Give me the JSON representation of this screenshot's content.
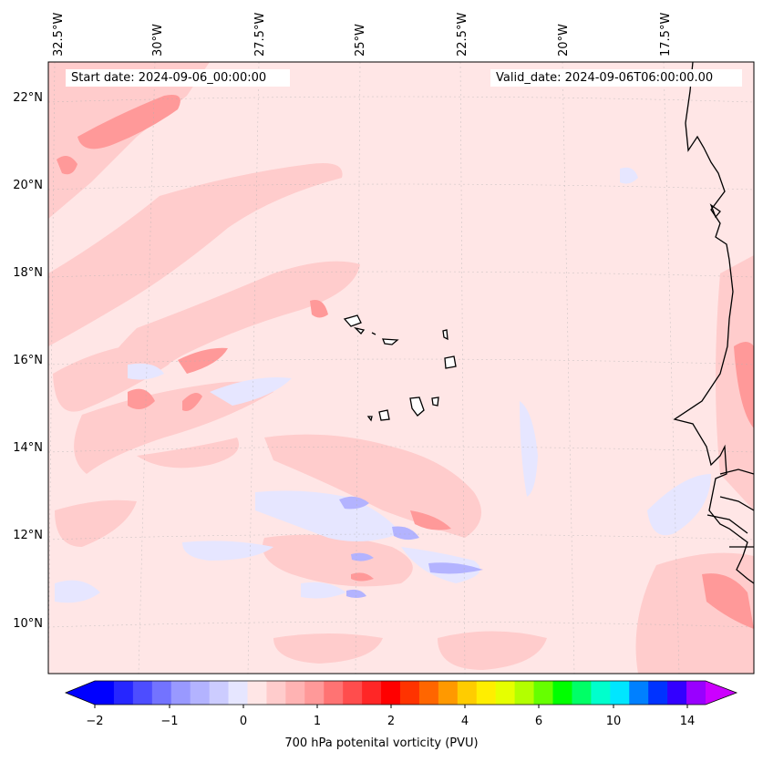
{
  "map": {
    "start_label": "Start date: 2024-09-06_00:00:00",
    "valid_label": "Valid_date: 2024-09-06T06:00:00.00",
    "lon_labels": [
      "32.5°W",
      "30°W",
      "27.5°W",
      "25°W",
      "22.5°W",
      "20°W",
      "17.5°W"
    ],
    "lat_labels": [
      "22°N",
      "20°N",
      "18°N",
      "16°N",
      "14°N",
      "12°N",
      "10°N"
    ],
    "field": "700 hPa potential vorticity",
    "colors": {
      "background_field": "#ffe6e6",
      "light_red": "#ffcccc",
      "mid_red": "#ff9999",
      "light_blue": "#e6e6ff",
      "mid_blue": "#b3b3ff",
      "coastline": "#000000"
    }
  },
  "colorbar": {
    "label": "700 hPa potenital vorticity (PVU)",
    "tick_labels": [
      "−2",
      "−1",
      "0",
      "1",
      "2",
      "4",
      "6",
      "10",
      "14"
    ],
    "colors": [
      "#0000ff",
      "#2626ff",
      "#4d4dff",
      "#7373ff",
      "#9999ff",
      "#b3b3ff",
      "#ccccff",
      "#e6e6ff",
      "#ffe6e6",
      "#ffcccc",
      "#ffb3b3",
      "#ff9999",
      "#ff7373",
      "#ff4d4d",
      "#ff2626",
      "#ff0000",
      "#ff3300",
      "#ff6600",
      "#ff9900",
      "#ffcc00",
      "#ffee00",
      "#e6ff00",
      "#b3ff00",
      "#66ff00",
      "#00ff00",
      "#00ff66",
      "#00ffcc",
      "#00e6ff",
      "#0080ff",
      "#0033ff",
      "#3300ff",
      "#9900ff"
    ],
    "extend_min_color": "#0000ff",
    "extend_max_color": "#cc00ff"
  }
}
